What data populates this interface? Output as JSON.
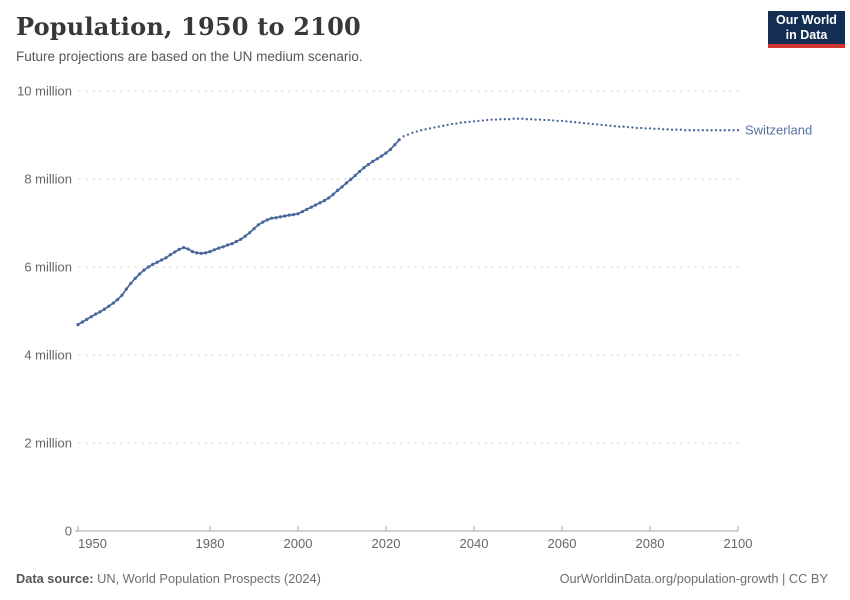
{
  "header": {
    "title": "Population, 1950 to 2100",
    "subtitle": "Future projections are based on the UN medium scenario.",
    "logo_line1": "Our World",
    "logo_line2": "in Data"
  },
  "footer": {
    "source_label": "Data source:",
    "source_text": " UN, World Population Prospects (2024)",
    "link_text": "OurWorldinData.org/population-growth | CC BY"
  },
  "colors": {
    "line": "#4a669a",
    "entity_label": "#56719f",
    "grid": "#dcdcdc",
    "axis": "#a5a5a5",
    "tick_text": "#666666",
    "logo_bg": "#132e52",
    "logo_accent": "#d0342c"
  },
  "chart_data": {
    "type": "line",
    "title": "Population, 1950 to 2100",
    "subtitle": "Future projections are based on the UN medium scenario.",
    "entity": "Switzerland",
    "unit": "people (millions)",
    "x_range": [
      1950,
      2100
    ],
    "y_range_millions": [
      0,
      10
    ],
    "x_ticks": [
      1950,
      1980,
      2000,
      2020,
      2040,
      2060,
      2080,
      2100
    ],
    "y_ticks": [
      {
        "value": 0,
        "label": "0"
      },
      {
        "value": 2,
        "label": "2 million"
      },
      {
        "value": 4,
        "label": "4 million"
      },
      {
        "value": 6,
        "label": "6 million"
      },
      {
        "value": 8,
        "label": "8 million"
      },
      {
        "value": 10,
        "label": "10 million"
      }
    ],
    "grid": true,
    "legend_position": "end-of-line",
    "projection_start_year": 2024,
    "series": [
      {
        "name": "Switzerland",
        "points_year_millions": [
          [
            1950,
            4.69
          ],
          [
            1951,
            4.75
          ],
          [
            1952,
            4.81
          ],
          [
            1953,
            4.87
          ],
          [
            1954,
            4.93
          ],
          [
            1955,
            4.98
          ],
          [
            1956,
            5.04
          ],
          [
            1957,
            5.11
          ],
          [
            1958,
            5.18
          ],
          [
            1959,
            5.26
          ],
          [
            1960,
            5.36
          ],
          [
            1961,
            5.5
          ],
          [
            1962,
            5.63
          ],
          [
            1963,
            5.74
          ],
          [
            1964,
            5.84
          ],
          [
            1965,
            5.93
          ],
          [
            1966,
            6.0
          ],
          [
            1967,
            6.06
          ],
          [
            1968,
            6.11
          ],
          [
            1969,
            6.16
          ],
          [
            1970,
            6.21
          ],
          [
            1971,
            6.28
          ],
          [
            1972,
            6.34
          ],
          [
            1973,
            6.4
          ],
          [
            1974,
            6.44
          ],
          [
            1975,
            6.41
          ],
          [
            1976,
            6.35
          ],
          [
            1977,
            6.32
          ],
          [
            1978,
            6.31
          ],
          [
            1979,
            6.32
          ],
          [
            1980,
            6.35
          ],
          [
            1981,
            6.39
          ],
          [
            1982,
            6.43
          ],
          [
            1983,
            6.46
          ],
          [
            1984,
            6.5
          ],
          [
            1985,
            6.53
          ],
          [
            1986,
            6.58
          ],
          [
            1987,
            6.63
          ],
          [
            1988,
            6.7
          ],
          [
            1989,
            6.78
          ],
          [
            1990,
            6.87
          ],
          [
            1991,
            6.96
          ],
          [
            1992,
            7.02
          ],
          [
            1993,
            7.07
          ],
          [
            1994,
            7.11
          ],
          [
            1995,
            7.12
          ],
          [
            1996,
            7.14
          ],
          [
            1997,
            7.16
          ],
          [
            1998,
            7.18
          ],
          [
            1999,
            7.19
          ],
          [
            2000,
            7.21
          ],
          [
            2001,
            7.26
          ],
          [
            2002,
            7.31
          ],
          [
            2003,
            7.36
          ],
          [
            2004,
            7.41
          ],
          [
            2005,
            7.46
          ],
          [
            2006,
            7.51
          ],
          [
            2007,
            7.57
          ],
          [
            2008,
            7.65
          ],
          [
            2009,
            7.74
          ],
          [
            2010,
            7.82
          ],
          [
            2011,
            7.91
          ],
          [
            2012,
            7.99
          ],
          [
            2013,
            8.08
          ],
          [
            2014,
            8.17
          ],
          [
            2015,
            8.26
          ],
          [
            2016,
            8.33
          ],
          [
            2017,
            8.4
          ],
          [
            2018,
            8.46
          ],
          [
            2019,
            8.52
          ],
          [
            2020,
            8.59
          ],
          [
            2021,
            8.67
          ],
          [
            2022,
            8.78
          ],
          [
            2023,
            8.89
          ],
          [
            2024,
            8.97
          ],
          [
            2025,
            9.01
          ],
          [
            2026,
            9.05
          ],
          [
            2027,
            9.08
          ],
          [
            2028,
            9.11
          ],
          [
            2029,
            9.13
          ],
          [
            2030,
            9.15
          ],
          [
            2031,
            9.17
          ],
          [
            2032,
            9.19
          ],
          [
            2033,
            9.21
          ],
          [
            2034,
            9.23
          ],
          [
            2035,
            9.25
          ],
          [
            2036,
            9.26
          ],
          [
            2037,
            9.28
          ],
          [
            2038,
            9.29
          ],
          [
            2039,
            9.3
          ],
          [
            2040,
            9.31
          ],
          [
            2041,
            9.32
          ],
          [
            2042,
            9.33
          ],
          [
            2043,
            9.34
          ],
          [
            2044,
            9.35
          ],
          [
            2045,
            9.35
          ],
          [
            2046,
            9.36
          ],
          [
            2047,
            9.36
          ],
          [
            2048,
            9.36
          ],
          [
            2049,
            9.37
          ],
          [
            2050,
            9.37
          ],
          [
            2051,
            9.37
          ],
          [
            2052,
            9.36
          ],
          [
            2053,
            9.36
          ],
          [
            2054,
            9.35
          ],
          [
            2055,
            9.35
          ],
          [
            2056,
            9.34
          ],
          [
            2057,
            9.34
          ],
          [
            2058,
            9.33
          ],
          [
            2059,
            9.32
          ],
          [
            2060,
            9.32
          ],
          [
            2061,
            9.31
          ],
          [
            2062,
            9.3
          ],
          [
            2063,
            9.29
          ],
          [
            2064,
            9.28
          ],
          [
            2065,
            9.27
          ],
          [
            2066,
            9.26
          ],
          [
            2067,
            9.25
          ],
          [
            2068,
            9.24
          ],
          [
            2069,
            9.23
          ],
          [
            2070,
            9.22
          ],
          [
            2071,
            9.21
          ],
          [
            2072,
            9.2
          ],
          [
            2073,
            9.19
          ],
          [
            2074,
            9.19
          ],
          [
            2075,
            9.18
          ],
          [
            2076,
            9.17
          ],
          [
            2077,
            9.16
          ],
          [
            2078,
            9.16
          ],
          [
            2079,
            9.15
          ],
          [
            2080,
            9.15
          ],
          [
            2081,
            9.14
          ],
          [
            2082,
            9.14
          ],
          [
            2083,
            9.13
          ],
          [
            2084,
            9.13
          ],
          [
            2085,
            9.12
          ],
          [
            2086,
            9.12
          ],
          [
            2087,
            9.12
          ],
          [
            2088,
            9.11
          ],
          [
            2089,
            9.11
          ],
          [
            2090,
            9.11
          ],
          [
            2091,
            9.11
          ],
          [
            2092,
            9.11
          ],
          [
            2093,
            9.11
          ],
          [
            2094,
            9.11
          ],
          [
            2095,
            9.11
          ],
          [
            2096,
            9.11
          ],
          [
            2097,
            9.11
          ],
          [
            2098,
            9.11
          ],
          [
            2099,
            9.11
          ],
          [
            2100,
            9.11
          ]
        ]
      }
    ]
  }
}
